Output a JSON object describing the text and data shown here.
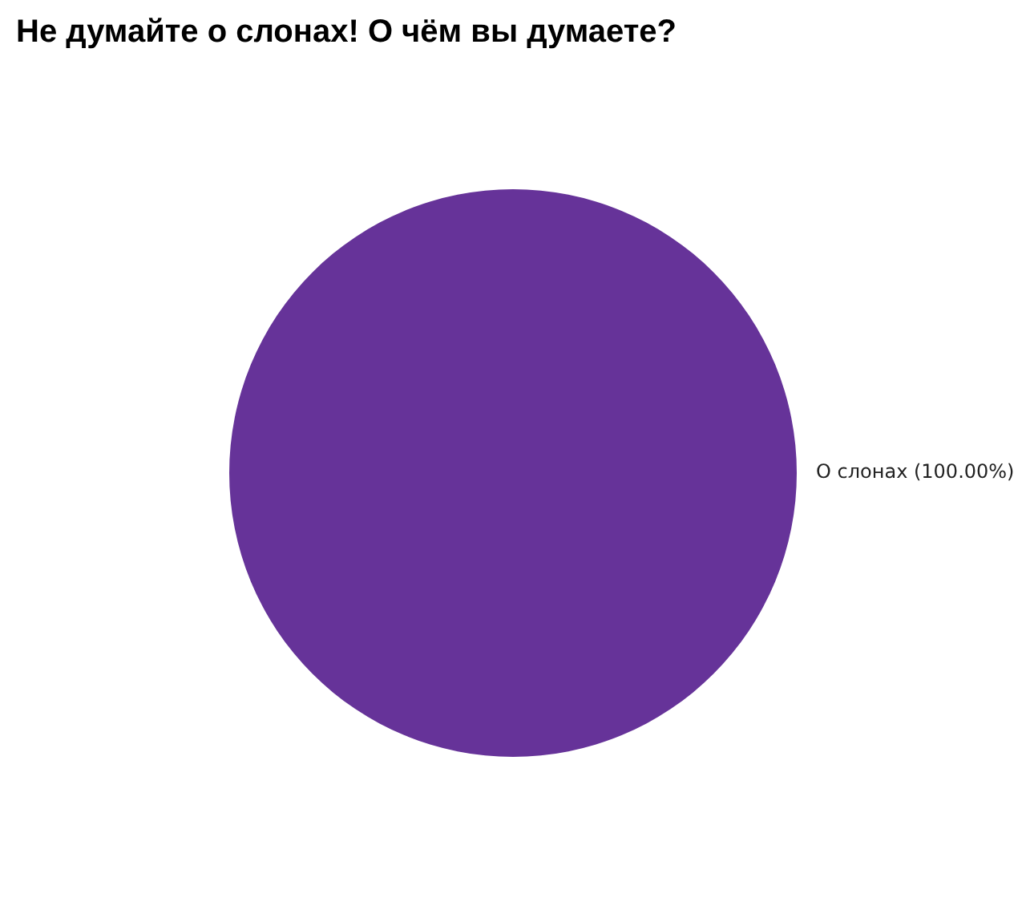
{
  "chart_data": {
    "type": "pie",
    "title": "Не думайте о слонах! О чём вы думаете?",
    "categories": [
      "О слонах"
    ],
    "values": [
      100
    ],
    "value_labels": [
      "(100.00%)"
    ],
    "colors": [
      "#663399"
    ],
    "legend": false
  }
}
